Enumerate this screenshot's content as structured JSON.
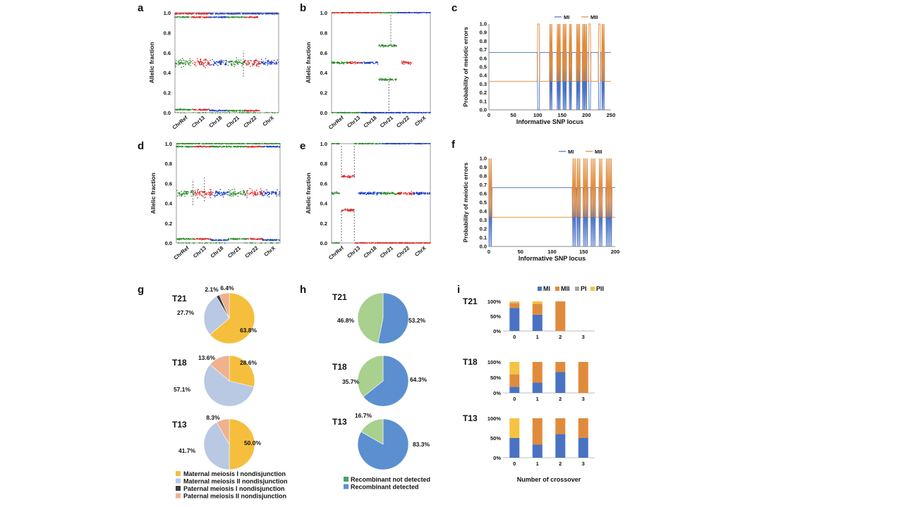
{
  "panels": {
    "a": {
      "label": "a",
      "ylabel": "Allelic fraction",
      "yticks": [
        "0.0",
        "0.2",
        "0.4",
        "0.6",
        "0.8",
        "1.0"
      ],
      "xticks": [
        "ChrRef",
        "Chr13",
        "Chr18",
        "Chr21",
        "Chr22",
        "ChrX"
      ]
    },
    "b": {
      "label": "b",
      "ylabel": "Allelic fraction",
      "yticks": [
        "0.0",
        "0.2",
        "0.4",
        "0.6",
        "0.8",
        "1.0"
      ],
      "xticks": [
        "ChrRef",
        "Chr13",
        "Chr18",
        "Chr21",
        "Chr22",
        "ChrX"
      ]
    },
    "c": {
      "label": "c",
      "ylabel": "Probability of meiotic errors",
      "xlabel": "Informative SNP locus",
      "yticks": [
        "0.0",
        "0.1",
        "0.2",
        "0.3",
        "0.4",
        "0.5",
        "0.6",
        "0.7",
        "0.8",
        "0.9",
        "1.0"
      ],
      "xticks": [
        "0",
        "50",
        "100",
        "150",
        "200",
        "250"
      ],
      "legend": [
        "MI",
        "MII"
      ]
    },
    "d": {
      "label": "d",
      "ylabel": "Allelic fraction",
      "yticks": [
        "0.0",
        "0.2",
        "0.4",
        "0.6",
        "0.8",
        "1.0"
      ],
      "xticks": [
        "ChrRef",
        "Chr13",
        "Chr18",
        "Chr21",
        "Chr22",
        "ChrX"
      ]
    },
    "e": {
      "label": "e",
      "ylabel": "Allelic fraction",
      "yticks": [
        "0.0",
        "0.2",
        "0.4",
        "0.6",
        "0.8",
        "1.0"
      ],
      "xticks": [
        "ChrRef",
        "Chr13",
        "Chr18",
        "Chr21",
        "Chr22",
        "ChrX"
      ]
    },
    "f": {
      "label": "f",
      "ylabel": "Probability of meiotic errors",
      "xlabel": "Informative SNP locus",
      "yticks": [
        "0.0",
        "0.1",
        "0.2",
        "0.3",
        "0.4",
        "0.5",
        "0.6",
        "0.7",
        "0.8",
        "0.9",
        "1.0"
      ],
      "xticks": [
        "0",
        "50",
        "100",
        "150",
        "200"
      ],
      "legend": [
        "MI",
        "MII"
      ]
    },
    "g": {
      "label": "g"
    },
    "h": {
      "label": "h"
    },
    "i": {
      "label": "i",
      "xlabel": "Number of crossover",
      "yticks": [
        "0%",
        "50%",
        "100%"
      ],
      "xticks": [
        "0",
        "1",
        "2",
        "3"
      ],
      "legend": [
        "MI",
        "MII",
        "PI",
        "PII"
      ]
    }
  },
  "pie_g": {
    "legend": [
      "Maternal meiosis I nondisjunction",
      "Maternal meiosis II nondisjunction",
      "Paternal meiosis I nondisjunction",
      "Paternal meiosis II nondisjunction"
    ],
    "colors": [
      "#f5bf3d",
      "#b9c8e3",
      "#3d3d3d",
      "#f0b18e"
    ],
    "groups": [
      {
        "name": "T21",
        "values": [
          63.8,
          27.7,
          2.1,
          6.4
        ],
        "labels": [
          "63.8%",
          "27.7%",
          "2.1%",
          "6.4%"
        ]
      },
      {
        "name": "T18",
        "values": [
          28.6,
          57.1,
          0,
          13.6
        ],
        "labels": [
          "28.6%",
          "57.1%",
          "",
          "13.6%"
        ]
      },
      {
        "name": "T13",
        "values": [
          50.0,
          41.7,
          0,
          8.3
        ],
        "labels": [
          "50.0%",
          "41.7%",
          "",
          "8.3%"
        ]
      }
    ]
  },
  "pie_h": {
    "legend": [
      "Recombinant not detected",
      "Recombinant detected"
    ],
    "legend_colors": [
      "#4aa164",
      "#5b8fd0"
    ],
    "colors": [
      "#a9d08e",
      "#5b8fd0"
    ],
    "groups": [
      {
        "name": "T21",
        "values": [
          46.8,
          53.2
        ],
        "labels": [
          "46.8%",
          "53.2%"
        ]
      },
      {
        "name": "T18",
        "values": [
          35.7,
          64.3
        ],
        "labels": [
          "35.7%",
          "64.3%"
        ]
      },
      {
        "name": "T13",
        "values": [
          16.7,
          83.3
        ],
        "labels": [
          "16.7%",
          "83.3%"
        ]
      }
    ]
  },
  "chart_data": [
    {
      "type": "scatter",
      "title": "",
      "xlabel": "",
      "ylabel": "Allelic fraction",
      "ylim": [
        0,
        1
      ],
      "categories": [
        "ChrRef",
        "Chr13",
        "Chr18",
        "Chr21",
        "Chr22",
        "ChrX"
      ]
    },
    {
      "type": "scatter",
      "title": "",
      "xlabel": "",
      "ylabel": "Allelic fraction",
      "ylim": [
        0,
        1
      ],
      "categories": [
        "ChrRef",
        "Chr13",
        "Chr18",
        "Chr21",
        "Chr22",
        "ChrX"
      ]
    },
    {
      "type": "line",
      "xlabel": "Informative SNP locus",
      "ylabel": "Probability of meiotic errors",
      "xlim": [
        0,
        250
      ],
      "ylim": [
        0,
        1
      ],
      "series": [
        {
          "name": "MI",
          "baseline": 0.667
        },
        {
          "name": "MII",
          "baseline": 0.333
        }
      ]
    },
    {
      "type": "scatter",
      "title": "",
      "xlabel": "",
      "ylabel": "Allelic fraction",
      "ylim": [
        0,
        1
      ],
      "categories": [
        "ChrRef",
        "Chr13",
        "Chr18",
        "Chr21",
        "Chr22",
        "ChrX"
      ]
    },
    {
      "type": "scatter",
      "title": "",
      "xlabel": "",
      "ylabel": "Allelic fraction",
      "ylim": [
        0,
        1
      ],
      "categories": [
        "ChrRef",
        "Chr13",
        "Chr18",
        "Chr21",
        "Chr22",
        "ChrX"
      ]
    },
    {
      "type": "line",
      "xlabel": "Informative SNP locus",
      "ylabel": "Probability of meiotic errors",
      "xlim": [
        0,
        200
      ],
      "ylim": [
        0,
        1
      ],
      "series": [
        {
          "name": "MI",
          "baseline": 0.667
        },
        {
          "name": "MII",
          "baseline": 0.333
        }
      ]
    },
    {
      "type": "pie",
      "groups": [
        "T21",
        "T18",
        "T13"
      ],
      "series": [
        {
          "name": "Maternal meiosis I nondisjunction",
          "values": [
            63.8,
            28.6,
            50.0
          ]
        },
        {
          "name": "Maternal meiosis II nondisjunction",
          "values": [
            27.7,
            57.1,
            41.7
          ]
        },
        {
          "name": "Paternal meiosis I nondisjunction",
          "values": [
            2.1,
            0,
            0
          ]
        },
        {
          "name": "Paternal meiosis II nondisjunction",
          "values": [
            6.4,
            13.6,
            8.3
          ]
        }
      ]
    },
    {
      "type": "pie",
      "groups": [
        "T21",
        "T18",
        "T13"
      ],
      "series": [
        {
          "name": "Recombinant not detected",
          "values": [
            46.8,
            35.7,
            16.7
          ]
        },
        {
          "name": "Recombinant detected",
          "values": [
            53.2,
            64.3,
            83.3
          ]
        }
      ]
    },
    {
      "type": "bar",
      "stacked": true,
      "xlabel": "Number of crossover",
      "categories": [
        "0",
        "1",
        "2",
        "3"
      ],
      "ylim": [
        0,
        100
      ],
      "groups": [
        {
          "name": "T21",
          "series": [
            {
              "name": "MI",
              "values": [
                78,
                55,
                0,
                0
              ]
            },
            {
              "name": "MII",
              "values": [
                15,
                37,
                100,
                0
              ]
            },
            {
              "name": "PI",
              "values": [
                2,
                0,
                0,
                0
              ]
            },
            {
              "name": "PII",
              "values": [
                5,
                8,
                0,
                0
              ]
            }
          ]
        },
        {
          "name": "T18",
          "series": [
            {
              "name": "MI",
              "values": [
                20,
                33,
                67,
                0
              ]
            },
            {
              "name": "MII",
              "values": [
                40,
                67,
                33,
                100
              ]
            },
            {
              "name": "PI",
              "values": [
                0,
                0,
                0,
                0
              ]
            },
            {
              "name": "PII",
              "values": [
                40,
                0,
                0,
                0
              ]
            }
          ]
        },
        {
          "name": "T13",
          "series": [
            {
              "name": "MI",
              "values": [
                50,
                33,
                60,
                50
              ]
            },
            {
              "name": "MII",
              "values": [
                0,
                67,
                40,
                50
              ]
            },
            {
              "name": "PI",
              "values": [
                0,
                0,
                0,
                0
              ]
            },
            {
              "name": "PII",
              "values": [
                50,
                0,
                0,
                0
              ]
            }
          ]
        }
      ]
    }
  ]
}
